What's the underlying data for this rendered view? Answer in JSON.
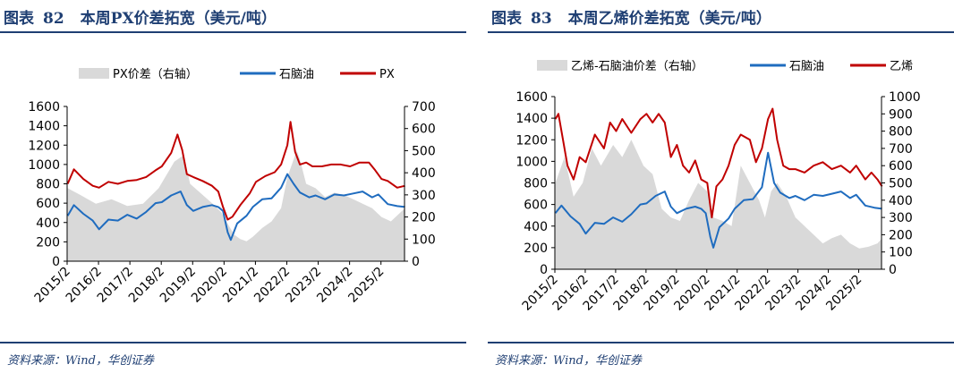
{
  "source_text": "资料来源：Wind，华创证券",
  "colors": {
    "title": "#1f3f73",
    "spread": "#d9d9d9",
    "naphtha": "#1f6cbf",
    "product": "#c00000"
  },
  "charts": [
    {
      "fig_prefix": "图表",
      "fig_number": "82",
      "title": "本周PX价差拓宽（美元/吨）",
      "chart_data": {
        "type": "line",
        "x_ticks": [
          "2015/2",
          "2016/2",
          "2017/2",
          "2018/2",
          "2019/2",
          "2020/2",
          "2021/2",
          "2022/2",
          "2023/2",
          "2024/2",
          "2025/2"
        ],
        "x_range": [
          "2015-02",
          "2025-11"
        ],
        "ylim_left": [
          0,
          1600
        ],
        "yticks_left": [
          0,
          200,
          400,
          600,
          800,
          1000,
          1200,
          1400,
          1600
        ],
        "ylim_right": [
          0,
          700
        ],
        "yticks_right": [
          0,
          100,
          200,
          300,
          400,
          500,
          600,
          700
        ],
        "legend_position": "top",
        "series": [
          {
            "name": "PX价差（右轴）",
            "kind": "area",
            "axis": "right",
            "x": [
              2015.1,
              2015.5,
              2016.0,
              2016.5,
              2017.0,
              2017.5,
              2018.0,
              2018.5,
              2018.8,
              2019.0,
              2019.4,
              2019.8,
              2020.0,
              2020.2,
              2020.4,
              2020.6,
              2020.8,
              2021.0,
              2021.3,
              2021.6,
              2021.9,
              2022.1,
              2022.4,
              2022.5,
              2022.7,
              2023.0,
              2023.3,
              2023.6,
              2023.9,
              2024.2,
              2024.5,
              2024.8,
              2025.1,
              2025.4,
              2025.7,
              2025.85
            ],
            "values": [
              330,
              300,
              260,
              280,
              250,
              260,
              330,
              450,
              480,
              350,
              300,
              250,
              220,
              170,
              120,
              100,
              90,
              110,
              150,
              180,
              240,
              380,
              500,
              460,
              350,
              330,
              290,
              310,
              300,
              280,
              260,
              240,
              200,
              180,
              220,
              240
            ]
          },
          {
            "name": "石脑油",
            "kind": "line",
            "axis": "left",
            "x": [
              2015.1,
              2015.3,
              2015.6,
              2015.9,
              2016.1,
              2016.4,
              2016.7,
              2017.0,
              2017.3,
              2017.6,
              2017.9,
              2018.1,
              2018.4,
              2018.7,
              2018.9,
              2019.1,
              2019.4,
              2019.7,
              2019.9,
              2020.05,
              2020.2,
              2020.3,
              2020.5,
              2020.8,
              2021.0,
              2021.3,
              2021.6,
              2021.9,
              2022.1,
              2022.3,
              2022.5,
              2022.8,
              2023.0,
              2023.3,
              2023.6,
              2023.9,
              2024.2,
              2024.5,
              2024.8,
              2025.0,
              2025.3,
              2025.6,
              2025.85
            ],
            "values": [
              470,
              580,
              490,
              420,
              330,
              430,
              420,
              480,
              440,
              510,
              600,
              610,
              680,
              720,
              580,
              520,
              560,
              580,
              560,
              520,
              300,
              220,
              390,
              470,
              560,
              640,
              650,
              760,
              900,
              800,
              710,
              660,
              680,
              640,
              690,
              680,
              700,
              720,
              660,
              690,
              590,
              570,
              560
            ]
          },
          {
            "name": "PX",
            "kind": "line",
            "axis": "left",
            "x": [
              2015.1,
              2015.3,
              2015.6,
              2015.9,
              2016.1,
              2016.4,
              2016.7,
              2017.0,
              2017.3,
              2017.6,
              2017.9,
              2018.1,
              2018.4,
              2018.6,
              2018.75,
              2018.9,
              2019.1,
              2019.4,
              2019.7,
              2019.9,
              2020.05,
              2020.2,
              2020.35,
              2020.6,
              2020.9,
              2021.1,
              2021.4,
              2021.7,
              2021.9,
              2022.1,
              2022.2,
              2022.35,
              2022.5,
              2022.7,
              2022.9,
              2023.2,
              2023.5,
              2023.8,
              2024.1,
              2024.4,
              2024.7,
              2024.9,
              2025.1,
              2025.3,
              2025.6,
              2025.85
            ],
            "values": [
              800,
              950,
              850,
              780,
              760,
              820,
              800,
              830,
              840,
              870,
              940,
              980,
              1120,
              1310,
              1150,
              900,
              870,
              830,
              780,
              720,
              560,
              430,
              460,
              580,
              700,
              820,
              880,
              920,
              1000,
              1200,
              1440,
              1130,
              1000,
              1020,
              980,
              980,
              1000,
              1000,
              980,
              1020,
              1020,
              940,
              850,
              830,
              760,
              780
            ]
          }
        ]
      }
    },
    {
      "fig_prefix": "图表",
      "fig_number": "83",
      "title": "本周乙烯价差拓宽（美元/吨）",
      "chart_data": {
        "type": "line",
        "x_ticks": [
          "2015/2",
          "2016/2",
          "2017/2",
          "2018/2",
          "2019/2",
          "2020/2",
          "2021/2",
          "2022/2",
          "2023/2",
          "2024/2",
          "2025/2"
        ],
        "x_range": [
          "2015-02",
          "2025-11"
        ],
        "ylim_left": [
          0,
          1600
        ],
        "yticks_left": [
          0,
          200,
          400,
          600,
          800,
          1000,
          1200,
          1400,
          1600
        ],
        "ylim_right": [
          0,
          1000
        ],
        "yticks_right": [
          0,
          100,
          200,
          300,
          400,
          500,
          600,
          700,
          800,
          900,
          1000
        ],
        "legend_position": "top",
        "series": [
          {
            "name": "乙烯-石脑油价差（右轴）",
            "kind": "area",
            "axis": "right",
            "x": [
              2015.1,
              2015.4,
              2015.7,
              2016.0,
              2016.3,
              2016.6,
              2017.0,
              2017.3,
              2017.6,
              2018.0,
              2018.3,
              2018.6,
              2018.9,
              2019.2,
              2019.5,
              2019.8,
              2020.1,
              2020.3,
              2020.6,
              2020.9,
              2021.2,
              2021.5,
              2021.8,
              2022.0,
              2022.2,
              2022.4,
              2022.7,
              2023.0,
              2023.3,
              2023.6,
              2023.9,
              2024.2,
              2024.5,
              2024.8,
              2025.1,
              2025.4,
              2025.7,
              2025.85
            ],
            "values": [
              500,
              650,
              420,
              500,
              700,
              600,
              720,
              650,
              750,
              600,
              550,
              350,
              300,
              280,
              400,
              500,
              450,
              300,
              280,
              250,
              600,
              500,
              400,
              300,
              450,
              500,
              420,
              300,
              250,
              200,
              150,
              180,
              200,
              150,
              120,
              130,
              150,
              180
            ]
          },
          {
            "name": "石脑油",
            "kind": "line",
            "axis": "left",
            "x": [
              2015.1,
              2015.3,
              2015.6,
              2015.9,
              2016.1,
              2016.4,
              2016.7,
              2017.0,
              2017.3,
              2017.6,
              2017.9,
              2018.1,
              2018.4,
              2018.7,
              2018.9,
              2019.1,
              2019.4,
              2019.7,
              2019.9,
              2020.05,
              2020.2,
              2020.3,
              2020.5,
              2020.8,
              2021.0,
              2021.3,
              2021.6,
              2021.9,
              2022.1,
              2022.3,
              2022.5,
              2022.8,
              2023.0,
              2023.3,
              2023.6,
              2023.9,
              2024.2,
              2024.5,
              2024.8,
              2025.0,
              2025.3,
              2025.6,
              2025.85
            ],
            "values": [
              520,
              590,
              490,
              420,
              330,
              430,
              420,
              480,
              440,
              510,
              600,
              610,
              680,
              720,
              580,
              520,
              560,
              580,
              560,
              520,
              300,
              200,
              390,
              470,
              560,
              640,
              650,
              760,
              1080,
              800,
              710,
              660,
              680,
              640,
              690,
              680,
              700,
              720,
              660,
              690,
              590,
              570,
              560
            ]
          },
          {
            "name": "乙烯",
            "kind": "line",
            "axis": "right",
            "x": [
              2015.1,
              2015.2,
              2015.35,
              2015.5,
              2015.7,
              2015.9,
              2016.1,
              2016.4,
              2016.7,
              2016.9,
              2017.1,
              2017.3,
              2017.6,
              2017.9,
              2018.1,
              2018.3,
              2018.5,
              2018.7,
              2018.9,
              2019.1,
              2019.3,
              2019.5,
              2019.7,
              2019.9,
              2020.1,
              2020.25,
              2020.4,
              2020.6,
              2020.8,
              2021.0,
              2021.2,
              2021.5,
              2021.7,
              2021.9,
              2022.1,
              2022.25,
              2022.4,
              2022.6,
              2022.8,
              2023.0,
              2023.3,
              2023.6,
              2023.9,
              2024.2,
              2024.5,
              2024.8,
              2025.0,
              2025.3,
              2025.5,
              2025.7,
              2025.85
            ],
            "values": [
              870,
              900,
              750,
              600,
              520,
              650,
              620,
              780,
              700,
              850,
              800,
              870,
              790,
              870,
              900,
              850,
              900,
              850,
              650,
              720,
              600,
              560,
              630,
              520,
              500,
              300,
              480,
              520,
              600,
              720,
              780,
              750,
              620,
              700,
              870,
              930,
              750,
              600,
              580,
              580,
              560,
              600,
              620,
              580,
              600,
              560,
              600,
              520,
              560,
              520,
              480
            ]
          }
        ]
      }
    }
  ]
}
